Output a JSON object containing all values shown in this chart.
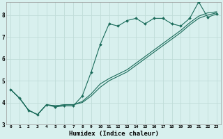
{
  "xlabel": "Humidex (Indice chaleur)",
  "bg_color": "#d8f0ee",
  "grid_color": "#c0dcd8",
  "line_color": "#1a6b5a",
  "xlim": [
    -0.5,
    23.5
  ],
  "ylim": [
    3.0,
    8.6
  ],
  "yticks": [
    3,
    4,
    5,
    6,
    7,
    8
  ],
  "xticks": [
    0,
    1,
    2,
    3,
    4,
    5,
    6,
    7,
    8,
    9,
    10,
    11,
    12,
    13,
    14,
    15,
    16,
    17,
    18,
    19,
    20,
    21,
    22,
    23
  ],
  "line1_x": [
    0,
    1,
    2,
    3,
    4,
    5,
    6,
    7,
    8,
    9,
    10,
    11,
    12,
    13,
    14,
    15,
    16,
    17,
    18,
    19,
    20,
    21,
    22,
    23
  ],
  "line1_y": [
    4.6,
    4.2,
    3.65,
    3.45,
    3.9,
    3.8,
    3.85,
    3.85,
    4.3,
    5.4,
    6.65,
    7.6,
    7.5,
    7.75,
    7.85,
    7.6,
    7.85,
    7.85,
    7.6,
    7.5,
    7.85,
    8.6,
    7.9,
    8.05
  ],
  "line2_x": [
    0,
    1,
    2,
    3,
    4,
    5,
    6,
    7,
    8,
    9,
    10,
    11,
    12,
    13,
    14,
    15,
    16,
    17,
    18,
    19,
    20,
    21,
    22,
    23
  ],
  "line2_y": [
    4.6,
    4.2,
    3.65,
    3.45,
    3.9,
    3.85,
    3.9,
    3.9,
    4.0,
    4.3,
    4.7,
    5.0,
    5.2,
    5.4,
    5.7,
    6.0,
    6.3,
    6.6,
    6.9,
    7.2,
    7.55,
    7.85,
    8.0,
    8.1
  ],
  "line3_x": [
    0,
    1,
    2,
    3,
    4,
    5,
    6,
    7,
    8,
    9,
    10,
    11,
    12,
    13,
    14,
    15,
    16,
    17,
    18,
    19,
    20,
    21,
    22,
    23
  ],
  "line3_y": [
    4.6,
    4.2,
    3.65,
    3.45,
    3.9,
    3.85,
    3.9,
    3.9,
    4.05,
    4.4,
    4.85,
    5.1,
    5.3,
    5.5,
    5.8,
    6.1,
    6.4,
    6.7,
    7.0,
    7.3,
    7.65,
    7.95,
    8.1,
    8.15
  ]
}
